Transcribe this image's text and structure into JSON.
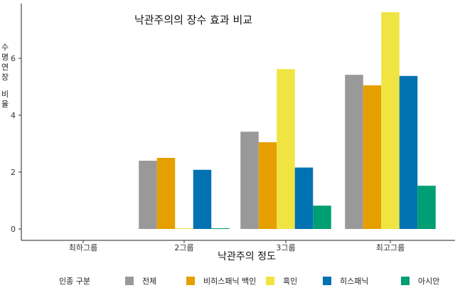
{
  "chart_data": {
    "type": "bar",
    "title": "낙관주의의 장수 효과 비교",
    "xlabel": "낙관주의 정도",
    "ylabel": "수명연장 비율",
    "categories": [
      "최하그룹",
      "2그룹",
      "3그룹",
      "최고그룹"
    ],
    "ylim": [
      0,
      7.6
    ],
    "yticks": [
      0,
      2,
      4,
      6
    ],
    "grid": false,
    "legend_position": "bottom",
    "legend_title": "인종 구분",
    "series": [
      {
        "name": "전체",
        "color": "#999999",
        "values": [
          0,
          2.4,
          3.42,
          5.42
        ]
      },
      {
        "name": "비히스패닉 백인",
        "color": "#E69F00",
        "values": [
          0,
          2.5,
          3.05,
          5.05
        ]
      },
      {
        "name": "흑인",
        "color": "#F0E442",
        "values": [
          0,
          0.02,
          5.62,
          7.62
        ]
      },
      {
        "name": "히스패닉",
        "color": "#0072B2",
        "values": [
          0,
          2.08,
          2.16,
          5.38
        ]
      },
      {
        "name": "아시안",
        "color": "#009E73",
        "values": [
          0,
          0.02,
          0.82,
          1.52
        ]
      }
    ]
  }
}
